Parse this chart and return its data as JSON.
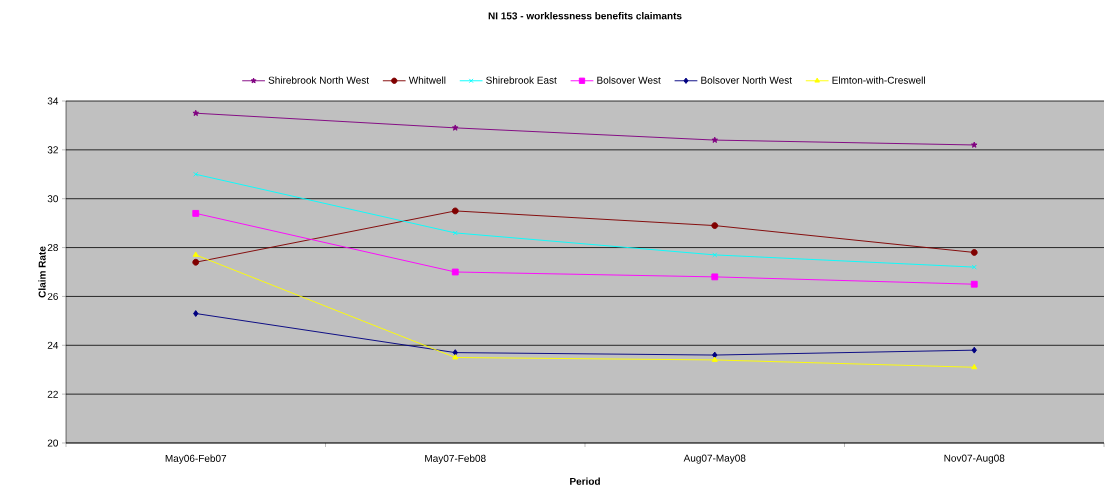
{
  "chart_data": {
    "type": "line",
    "title": "NI 153 - worklessness benefits claimants",
    "xlabel": "Period",
    "ylabel": "Claim Rate",
    "categories": [
      "May06-Feb07",
      "May07-Feb08",
      "Aug07-May08",
      "Nov07-Aug08"
    ],
    "series": [
      {
        "name": "Shirebrook North West",
        "color": "#800080",
        "marker": "star",
        "values": [
          33.5,
          32.9,
          32.4,
          32.2
        ]
      },
      {
        "name": "Whitwell",
        "color": "#800000",
        "marker": "circle",
        "values": [
          27.4,
          29.5,
          28.9,
          27.8
        ]
      },
      {
        "name": "Shirebrook East",
        "color": "#00ffff",
        "marker": "cross",
        "values": [
          31.0,
          28.6,
          27.7,
          27.2
        ]
      },
      {
        "name": "Bolsover West",
        "color": "#ff00ff",
        "marker": "square",
        "values": [
          29.4,
          27.0,
          26.8,
          26.5
        ]
      },
      {
        "name": "Bolsover North West",
        "color": "#000080",
        "marker": "diamond",
        "values": [
          25.3,
          23.7,
          23.6,
          23.8
        ]
      },
      {
        "name": "Elmton-with-Creswell",
        "color": "#ffff00",
        "marker": "triangle",
        "values": [
          27.7,
          23.5,
          23.4,
          23.1
        ]
      }
    ],
    "ylim": [
      20,
      34
    ],
    "yticks": [
      20,
      22,
      24,
      26,
      28,
      30,
      32,
      34
    ],
    "grid": "y",
    "legend": "top",
    "line_style": "solid"
  }
}
